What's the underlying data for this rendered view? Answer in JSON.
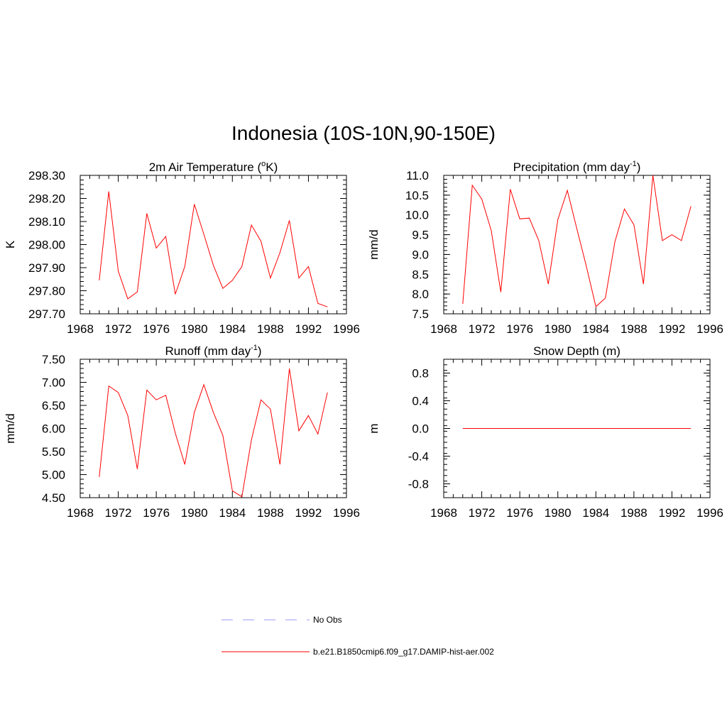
{
  "page": {
    "title": "Indonesia (10S-10N,90-150E)"
  },
  "colors": {
    "series": "#ff0000",
    "obs": "#9999ff",
    "axis": "#000000"
  },
  "legend": {
    "obs_label": "No Obs",
    "model_label": "b.e21.B1850cmip6.f09_g17.DAMIP-hist-aer.002"
  },
  "chart_data": [
    {
      "type": "line",
      "title": "2m Air Temperature (",
      "title_sup": "o",
      "title_suffix": "K)",
      "ylabel": "K",
      "xlim": [
        1968,
        1996
      ],
      "ylim": [
        297.7,
        298.3
      ],
      "xticks": [
        "1968",
        "1972",
        "1976",
        "1980",
        "1984",
        "1988",
        "1992",
        "1996"
      ],
      "yticks": [
        "297.70",
        "297.80",
        "297.90",
        "298.00",
        "298.10",
        "298.20",
        "298.30"
      ],
      "x": [
        1970,
        1971,
        1972,
        1973,
        1974,
        1975,
        1976,
        1977,
        1978,
        1979,
        1980,
        1981,
        1982,
        1983,
        1984,
        1985,
        1986,
        1987,
        1988,
        1989,
        1990,
        1991,
        1992,
        1993,
        1994
      ],
      "series": [
        {
          "values": [
            297.845,
            298.23,
            297.885,
            297.765,
            297.795,
            298.135,
            297.985,
            298.035,
            297.785,
            297.905,
            298.175,
            298.045,
            297.91,
            297.81,
            297.845,
            297.905,
            298.085,
            298.015,
            297.855,
            297.965,
            298.105,
            297.855,
            297.905,
            297.745,
            297.73
          ]
        }
      ]
    },
    {
      "type": "line",
      "title": "Precipitation (mm day",
      "title_sup": "-1",
      "title_suffix": ")",
      "ylabel": "mm/d",
      "xlim": [
        1968,
        1996
      ],
      "ylim": [
        7.5,
        11.0
      ],
      "xticks": [
        "1968",
        "1972",
        "1976",
        "1980",
        "1984",
        "1988",
        "1992",
        "1996"
      ],
      "yticks": [
        "7.5",
        "8.0",
        "8.5",
        "9.0",
        "9.5",
        "10.0",
        "10.5",
        "11.0"
      ],
      "x": [
        1970,
        1971,
        1972,
        1973,
        1974,
        1975,
        1976,
        1977,
        1978,
        1979,
        1980,
        1981,
        1982,
        1983,
        1984,
        1985,
        1986,
        1987,
        1988,
        1989,
        1990,
        1991,
        1992,
        1993,
        1994
      ],
      "series": [
        {
          "values": [
            7.75,
            10.75,
            10.4,
            9.6,
            8.05,
            10.65,
            9.9,
            9.92,
            9.35,
            8.25,
            9.88,
            10.62,
            9.65,
            8.7,
            7.68,
            7.9,
            9.32,
            10.15,
            9.75,
            8.25,
            11.0,
            9.35,
            9.5,
            9.35,
            10.22
          ]
        }
      ]
    },
    {
      "type": "line",
      "title": "Runoff (mm day",
      "title_sup": "-1",
      "title_suffix": ")",
      "ylabel": "mm/d",
      "xlim": [
        1968,
        1996
      ],
      "ylim": [
        4.5,
        7.5
      ],
      "xticks": [
        "1968",
        "1972",
        "1976",
        "1980",
        "1984",
        "1988",
        "1992",
        "1996"
      ],
      "yticks": [
        "4.50",
        "5.00",
        "5.50",
        "6.00",
        "6.50",
        "7.00",
        "7.50"
      ],
      "x": [
        1970,
        1971,
        1972,
        1973,
        1974,
        1975,
        1976,
        1977,
        1978,
        1979,
        1980,
        1981,
        1982,
        1983,
        1984,
        1985,
        1986,
        1987,
        1988,
        1989,
        1990,
        1991,
        1992,
        1993,
        1994
      ],
      "series": [
        {
          "values": [
            4.95,
            6.92,
            6.78,
            6.28,
            5.12,
            6.83,
            6.62,
            6.72,
            5.9,
            5.22,
            6.35,
            6.95,
            6.35,
            5.85,
            4.65,
            4.52,
            5.75,
            6.62,
            6.42,
            5.22,
            7.3,
            5.95,
            6.28,
            5.88,
            6.78
          ]
        }
      ]
    },
    {
      "type": "line",
      "title": "Snow Depth (m)",
      "title_sup": "",
      "title_suffix": "",
      "ylabel": "m",
      "xlim": [
        1968,
        1996
      ],
      "ylim": [
        -1.0,
        1.0
      ],
      "xticks": [
        "1968",
        "1972",
        "1976",
        "1980",
        "1984",
        "1988",
        "1992",
        "1996"
      ],
      "yticks": [
        "-0.8",
        "-0.4",
        "0.0",
        "0.4",
        "0.8"
      ],
      "ytick_values": [
        -0.8,
        -0.4,
        0.0,
        0.4,
        0.8
      ],
      "x": [
        1970,
        1971,
        1972,
        1973,
        1974,
        1975,
        1976,
        1977,
        1978,
        1979,
        1980,
        1981,
        1982,
        1983,
        1984,
        1985,
        1986,
        1987,
        1988,
        1989,
        1990,
        1991,
        1992,
        1993,
        1994
      ],
      "series": [
        {
          "values": [
            0,
            0,
            0,
            0,
            0,
            0,
            0,
            0,
            0,
            0,
            0,
            0,
            0,
            0,
            0,
            0,
            0,
            0,
            0,
            0,
            0,
            0,
            0,
            0,
            0
          ]
        }
      ]
    }
  ]
}
